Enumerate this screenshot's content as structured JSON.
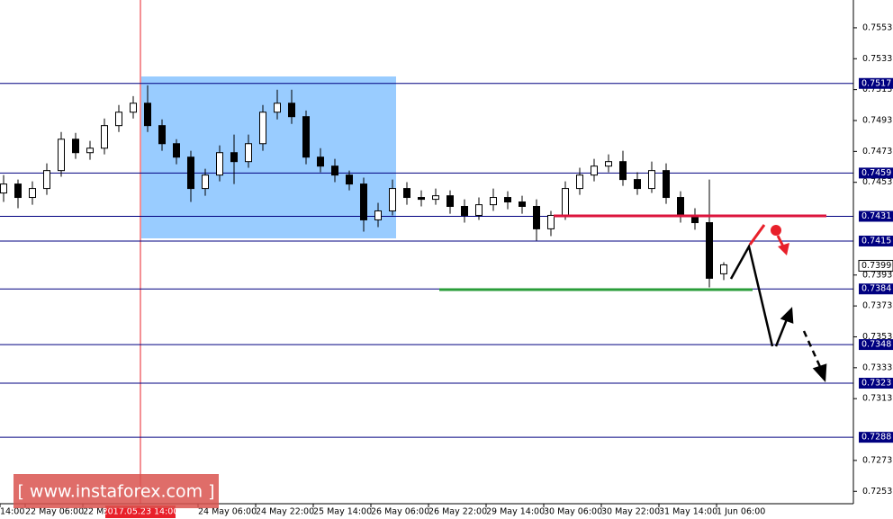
{
  "chart_data": {
    "type": "candlestick",
    "x": [
      -6,
      -2,
      2,
      6,
      10,
      14,
      18,
      22,
      26,
      30,
      34,
      38,
      42,
      46,
      50,
      54,
      58,
      62,
      66,
      70,
      74,
      78,
      82,
      86,
      90,
      94,
      98,
      102,
      106,
      110,
      114,
      118,
      122,
      126,
      130,
      134,
      138,
      142,
      146,
      150,
      154,
      158,
      162,
      166,
      170,
      174,
      178,
      182,
      186,
      190,
      194
    ],
    "open": [
      0.74461,
      0.74519,
      0.74432,
      0.7449,
      0.74606,
      0.74809,
      0.74722,
      0.74751,
      0.74897,
      0.74984,
      0.75042,
      0.74897,
      0.7478,
      0.74693,
      0.7449,
      0.74577,
      0.74722,
      0.74664,
      0.7478,
      0.74984,
      0.75042,
      0.74955,
      0.74693,
      0.74635,
      0.74577,
      0.74519,
      0.74287,
      0.74345,
      0.7449,
      0.74432,
      0.7442,
      0.74443,
      0.74374,
      0.74316,
      0.74385,
      0.74432,
      0.74403,
      0.74374,
      0.74229,
      0.74316,
      0.7449,
      0.74577,
      0.74635,
      0.74664,
      0.74548,
      0.7449,
      0.74606,
      0.74432,
      0.74316,
      0.74269,
      0.73938
    ],
    "high": [
      0.74577,
      0.74548,
      0.74536,
      0.74653,
      0.74856,
      0.7485,
      0.74798,
      0.74943,
      0.7503,
      0.75088,
      0.75158,
      0.74937,
      0.74809,
      0.74734,
      0.74618,
      0.74769,
      0.74839,
      0.74839,
      0.7503,
      0.75129,
      0.75129,
      0.74995,
      0.74751,
      0.74682,
      0.74606,
      0.7456,
      0.74397,
      0.74548,
      0.74531,
      0.74478,
      0.7449,
      0.74478,
      0.7442,
      0.74432,
      0.7449,
      0.74472,
      0.74443,
      0.7442,
      0.74345,
      0.74536,
      0.74624,
      0.74682,
      0.74711,
      0.74734,
      0.74595,
      0.74664,
      0.74653,
      0.74472,
      0.74362,
      0.74548,
      0.74013
    ],
    "low": [
      0.74403,
      0.74362,
      0.74385,
      0.74449,
      0.74566,
      0.74682,
      0.74676,
      0.74711,
      0.74856,
      0.74943,
      0.74856,
      0.74734,
      0.74647,
      0.74403,
      0.74443,
      0.74536,
      0.74519,
      0.74624,
      0.74734,
      0.74937,
      0.74908,
      0.74647,
      0.74595,
      0.74531,
      0.74478,
      0.74211,
      0.7424,
      0.74316,
      0.74385,
      0.74374,
      0.74385,
      0.74327,
      0.74269,
      0.74287,
      0.74345,
      0.74356,
      0.74327,
      0.74153,
      0.74182,
      0.74287,
      0.74449,
      0.74536,
      0.74595,
      0.74507,
      0.74449,
      0.74461,
      0.74391,
      0.74269,
      0.74223,
      0.7385,
      0.73897
    ],
    "close": [
      0.74519,
      0.74432,
      0.7449,
      0.74606,
      0.74809,
      0.74722,
      0.74751,
      0.74897,
      0.74984,
      0.75042,
      0.74897,
      0.7478,
      0.74693,
      0.7449,
      0.74577,
      0.74722,
      0.74664,
      0.7478,
      0.74984,
      0.75042,
      0.74955,
      0.74693,
      0.74635,
      0.74577,
      0.74519,
      0.74287,
      0.74345,
      0.7449,
      0.74432,
      0.7442,
      0.74443,
      0.74374,
      0.74316,
      0.74385,
      0.74432,
      0.74403,
      0.74374,
      0.74229,
      0.74316,
      0.7449,
      0.74577,
      0.74635,
      0.74664,
      0.74548,
      0.7449,
      0.74606,
      0.74432,
      0.74316,
      0.74269,
      0.73909,
      0.73996
    ],
    "xlim": [
      -7,
      230
    ],
    "ylim": [
      0.7245,
      0.7571
    ],
    "yticks": [
      0.7553,
      0.7533,
      0.7513,
      0.7493,
      0.7473,
      0.7453,
      0.7393,
      0.7373,
      0.7353,
      0.7333,
      0.7313,
      0.7273,
      0.7253
    ],
    "xticks": [
      {
        "value": -7,
        "label": "14:00"
      },
      {
        "value": 0,
        "label": "22 May 06:00"
      },
      {
        "value": 16,
        "label": "22 Ma"
      },
      {
        "value": 48,
        "label": "24 May 06:00"
      },
      {
        "value": 64,
        "label": "24 May 22:00"
      },
      {
        "value": 80,
        "label": "25 May 14:00"
      },
      {
        "value": 96,
        "label": "26 May 06:00"
      },
      {
        "value": 112,
        "label": "26 May 22:00"
      },
      {
        "value": 128,
        "label": "29 May 14:00"
      },
      {
        "value": 144,
        "label": "30 May 06:00"
      },
      {
        "value": 160,
        "label": "30 May 22:00"
      },
      {
        "value": 176,
        "label": "31 May 14:00"
      },
      {
        "value": 192,
        "label": "1 Jun 06:00"
      }
    ],
    "levels": [
      0.7517,
      0.7459,
      0.7431,
      0.7415,
      0.7384,
      0.7348,
      0.7323,
      0.7288
    ],
    "level_color": "#000080",
    "current_price": 0.7399,
    "crosshair": {
      "value": 32,
      "label": "2017.05.23 14:00"
    },
    "watermark": "[ www.instaforex.com ]"
  }
}
